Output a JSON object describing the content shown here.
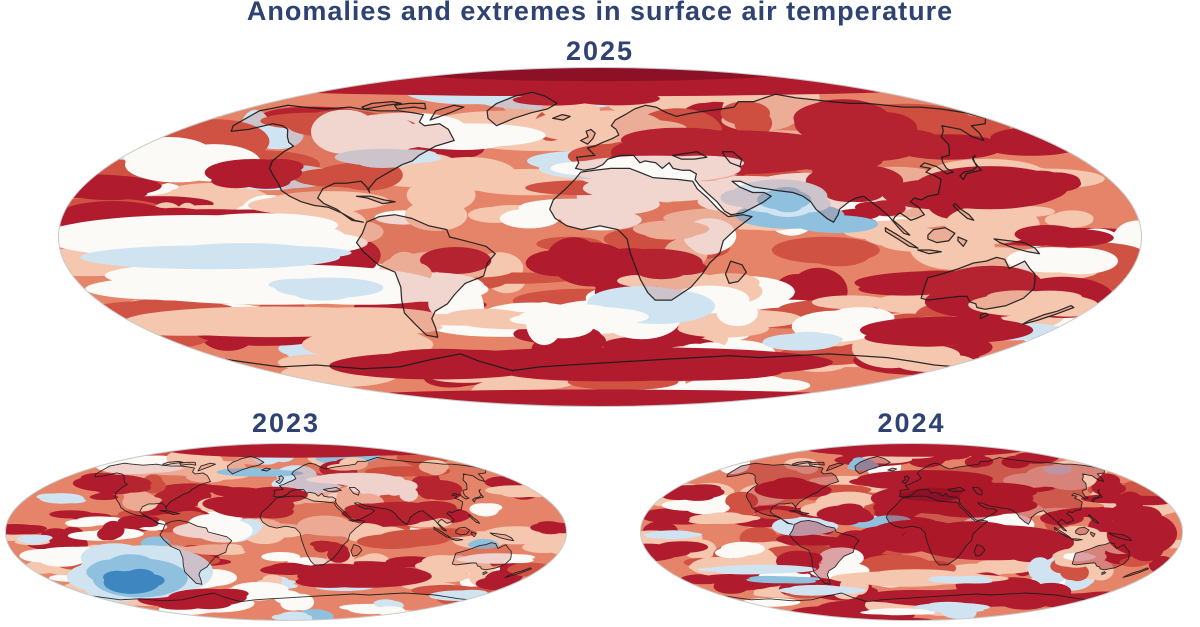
{
  "chart_data": {
    "type": "heatmap",
    "title": "Anomalies and extremes in surface air temperature",
    "title_color": "#2e4372",
    "variable": "surface air temperature anomaly",
    "projection": "elliptical pseudocylindrical world map",
    "legend": "none",
    "palette": {
      "base": "#e58468",
      "mid": "#d05243",
      "dark": "#b01b2d",
      "deep": "#8d1126",
      "light": "#f6c7af",
      "white": "#fcfaf7",
      "lblue": "#cfe3f1",
      "mblue": "#8fc0de",
      "blue": "#3d86c0"
    },
    "panels": [
      {
        "year": "2025",
        "position": "top",
        "seed": 20250,
        "patches": 240,
        "coast_width": 1.25,
        "land_tint": "rgba(200,70,55,0.20)",
        "weights": {
          "light": 0.3,
          "white": 0.13,
          "dark": 0.17,
          "mid": 0.12,
          "lblue": 0.04,
          "mblue": 0.01,
          "base": 0.23
        },
        "features": [
          [
            -0.02,
            -0.93,
            0.85,
            0.1,
            "dark"
          ],
          [
            0.0,
            -0.97,
            0.35,
            0.05,
            "deep"
          ],
          [
            0.24,
            -0.5,
            0.22,
            0.13,
            "dark"
          ],
          [
            0.47,
            -0.33,
            0.09,
            0.1,
            "dark"
          ],
          [
            -0.64,
            -0.38,
            0.09,
            0.08,
            "dark"
          ],
          [
            -0.95,
            -0.3,
            0.14,
            0.07,
            "dark"
          ],
          [
            0.1,
            0.15,
            0.09,
            0.08,
            "dark"
          ],
          [
            0.64,
            0.27,
            0.17,
            0.07,
            "dark"
          ],
          [
            0.05,
            0.74,
            0.38,
            0.09,
            "dark"
          ],
          [
            0.64,
            0.55,
            0.16,
            0.08,
            "dark"
          ],
          [
            -0.3,
            0.76,
            0.2,
            0.08,
            "dark"
          ],
          [
            0.0,
            0.96,
            0.55,
            0.06,
            "dark"
          ],
          [
            -0.75,
            0.0,
            0.28,
            0.13,
            "white"
          ],
          [
            -0.6,
            0.28,
            0.3,
            0.12,
            "white"
          ],
          [
            -0.72,
            0.12,
            0.24,
            0.07,
            "lblue"
          ],
          [
            -0.5,
            0.3,
            0.1,
            0.06,
            "lblue"
          ],
          [
            0.33,
            -0.24,
            0.09,
            0.1,
            "lblue"
          ],
          [
            0.34,
            -0.22,
            0.05,
            0.06,
            "mblue"
          ],
          [
            -0.4,
            -0.47,
            0.09,
            0.05,
            "lblue"
          ],
          [
            0.37,
            0.62,
            0.07,
            0.05,
            "lblue"
          ],
          [
            0.87,
            -0.8,
            0.06,
            0.06,
            "lblue"
          ],
          [
            -0.24,
            -0.6,
            0.14,
            0.07,
            "white"
          ],
          [
            0.1,
            -0.4,
            0.16,
            0.08,
            "white"
          ],
          [
            -0.03,
            0.47,
            0.12,
            0.06,
            "white"
          ],
          [
            -0.6,
            0.5,
            0.28,
            0.09,
            "light"
          ],
          [
            0.8,
            0.4,
            0.12,
            0.07,
            "light"
          ]
        ]
      },
      {
        "year": "2023",
        "position": "bottom-left",
        "seed": 20230,
        "patches": 165,
        "coast_width": 0.9,
        "land_tint": "rgba(200,70,55,0.22)",
        "weights": {
          "light": 0.27,
          "white": 0.12,
          "dark": 0.22,
          "mid": 0.13,
          "lblue": 0.045,
          "mblue": 0.015,
          "base": 0.2
        },
        "features": [
          [
            -0.5,
            0.45,
            0.24,
            0.3,
            "lblue"
          ],
          [
            -0.52,
            0.52,
            0.17,
            0.22,
            "mblue"
          ],
          [
            -0.55,
            0.57,
            0.1,
            0.13,
            "blue"
          ],
          [
            -0.97,
            -0.03,
            0.1,
            0.06,
            "dark"
          ],
          [
            0.95,
            -0.05,
            0.08,
            0.06,
            "dark"
          ],
          [
            -0.12,
            -0.3,
            0.15,
            0.14,
            "dark"
          ],
          [
            -0.62,
            -0.55,
            0.14,
            0.1,
            "dark"
          ],
          [
            0.4,
            -0.22,
            0.17,
            0.12,
            "dark"
          ],
          [
            0.28,
            0.5,
            0.24,
            0.13,
            "dark"
          ],
          [
            -0.28,
            0.74,
            0.14,
            0.1,
            "dark"
          ],
          [
            -0.53,
            -0.12,
            0.07,
            0.07,
            "dark"
          ],
          [
            0.02,
            -0.93,
            0.45,
            0.09,
            "dark"
          ],
          [
            -0.8,
            -0.38,
            0.08,
            0.06,
            "lblue"
          ],
          [
            -0.9,
            0.08,
            0.06,
            0.05,
            "lblue"
          ],
          [
            0.62,
            0.72,
            0.11,
            0.06,
            "lblue"
          ],
          [
            0.25,
            -0.6,
            0.15,
            0.07,
            "white"
          ],
          [
            0.75,
            0.3,
            0.12,
            0.06,
            "white"
          ],
          [
            -0.25,
            0.2,
            0.1,
            0.06,
            "light"
          ]
        ]
      },
      {
        "year": "2024",
        "position": "bottom-right",
        "seed": 20240,
        "patches": 165,
        "coast_width": 0.9,
        "land_tint": "rgba(165,20,35,0.38)",
        "weights": {
          "light": 0.24,
          "white": 0.1,
          "dark": 0.3,
          "mid": 0.14,
          "lblue": 0.05,
          "mblue": 0.02,
          "base": 0.15
        },
        "features": [
          [
            0.15,
            -0.38,
            0.3,
            0.18,
            "dark"
          ],
          [
            0.05,
            -0.6,
            0.25,
            0.1,
            "dark"
          ],
          [
            0.08,
            -0.42,
            0.1,
            0.08,
            "deep"
          ],
          [
            0.02,
            0.03,
            0.18,
            0.17,
            "dark"
          ],
          [
            0.05,
            0.06,
            0.09,
            0.09,
            "deep"
          ],
          [
            -0.45,
            -0.48,
            0.13,
            0.11,
            "dark"
          ],
          [
            0.3,
            0.12,
            0.3,
            0.2,
            "dark"
          ],
          [
            0.85,
            0.02,
            0.13,
            0.25,
            "dark"
          ],
          [
            -0.25,
            -0.2,
            0.1,
            0.1,
            "dark"
          ],
          [
            0.0,
            0.52,
            0.3,
            0.08,
            "light"
          ],
          [
            0.18,
            0.54,
            0.12,
            0.04,
            "lblue"
          ],
          [
            0.2,
            0.75,
            0.33,
            0.1,
            "dark"
          ],
          [
            -0.42,
            0.33,
            0.08,
            0.12,
            "dark"
          ],
          [
            -0.81,
            -0.45,
            0.12,
            0.08,
            "dark"
          ],
          [
            0.02,
            -0.93,
            0.4,
            0.08,
            "dark"
          ],
          [
            0.62,
            0.28,
            0.1,
            0.1,
            "light"
          ],
          [
            0.62,
            0.28,
            0.05,
            0.05,
            "white"
          ],
          [
            -0.55,
            0.42,
            0.2,
            0.05,
            "lblue"
          ],
          [
            -0.48,
            0.54,
            0.13,
            0.04,
            "mblue"
          ],
          [
            -0.33,
            0.66,
            0.16,
            0.05,
            "lblue"
          ],
          [
            -0.18,
            -0.76,
            0.05,
            0.07,
            "mblue"
          ],
          [
            -0.88,
            0.03,
            0.09,
            0.05,
            "lblue"
          ],
          [
            0.54,
            -0.7,
            0.05,
            0.05,
            "lblue"
          ],
          [
            0.15,
            0.85,
            0.14,
            0.05,
            "lblue"
          ],
          [
            -0.05,
            0.9,
            0.12,
            0.04,
            "white"
          ],
          [
            -0.7,
            -0.15,
            0.12,
            0.06,
            "light"
          ]
        ]
      }
    ]
  }
}
